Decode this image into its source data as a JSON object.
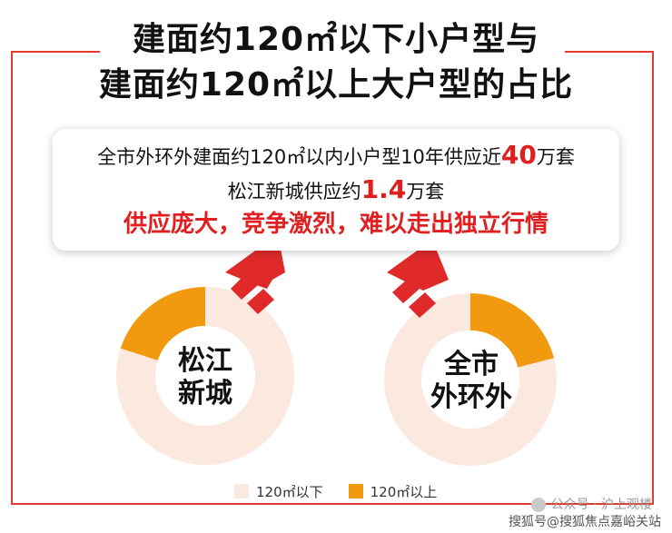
{
  "title": {
    "line1": "建面约120㎡以下小户型与",
    "line2": "建面约120㎡以上大户型的占比"
  },
  "callout": {
    "line1_pre": "全市外环外建面约120㎡以内小户型10年供应近",
    "line1_num": "40",
    "line1_post": "万套",
    "line2_pre": "松江新城供应约",
    "line2_num": "1.4",
    "line2_post": "万套",
    "line3": "供应庞大，竞争激烈，难以走出独立行情"
  },
  "chart_data": [
    {
      "type": "pie",
      "style": "donut",
      "center_label": [
        "松江",
        "新城"
      ],
      "series": [
        {
          "name": "120㎡以下",
          "value": 0.8,
          "color": "#fbe9df"
        },
        {
          "name": "120㎡以上",
          "value": 0.2,
          "color": "#f19a0f"
        }
      ]
    },
    {
      "type": "pie",
      "style": "donut",
      "center_label": [
        "全市",
        "外环外"
      ],
      "series": [
        {
          "name": "120㎡以下",
          "value": 0.79,
          "color": "#fbe9df"
        },
        {
          "name": "120㎡以上",
          "value": 0.21,
          "color": "#f19a0f"
        }
      ]
    }
  ],
  "legend": {
    "items": [
      {
        "label": "120㎡以下",
        "color": "#fbe9df"
      },
      {
        "label": "120㎡以上",
        "color": "#f19a0f"
      }
    ]
  },
  "watermark": {
    "line1": "公众号 · 沪上观楼",
    "line2": "搜狐号@搜狐焦点嘉峪关站"
  },
  "colors": {
    "accent_red": "#e02020",
    "frame_red": "#e53a2e",
    "arrow_red": "#e02a2a"
  }
}
